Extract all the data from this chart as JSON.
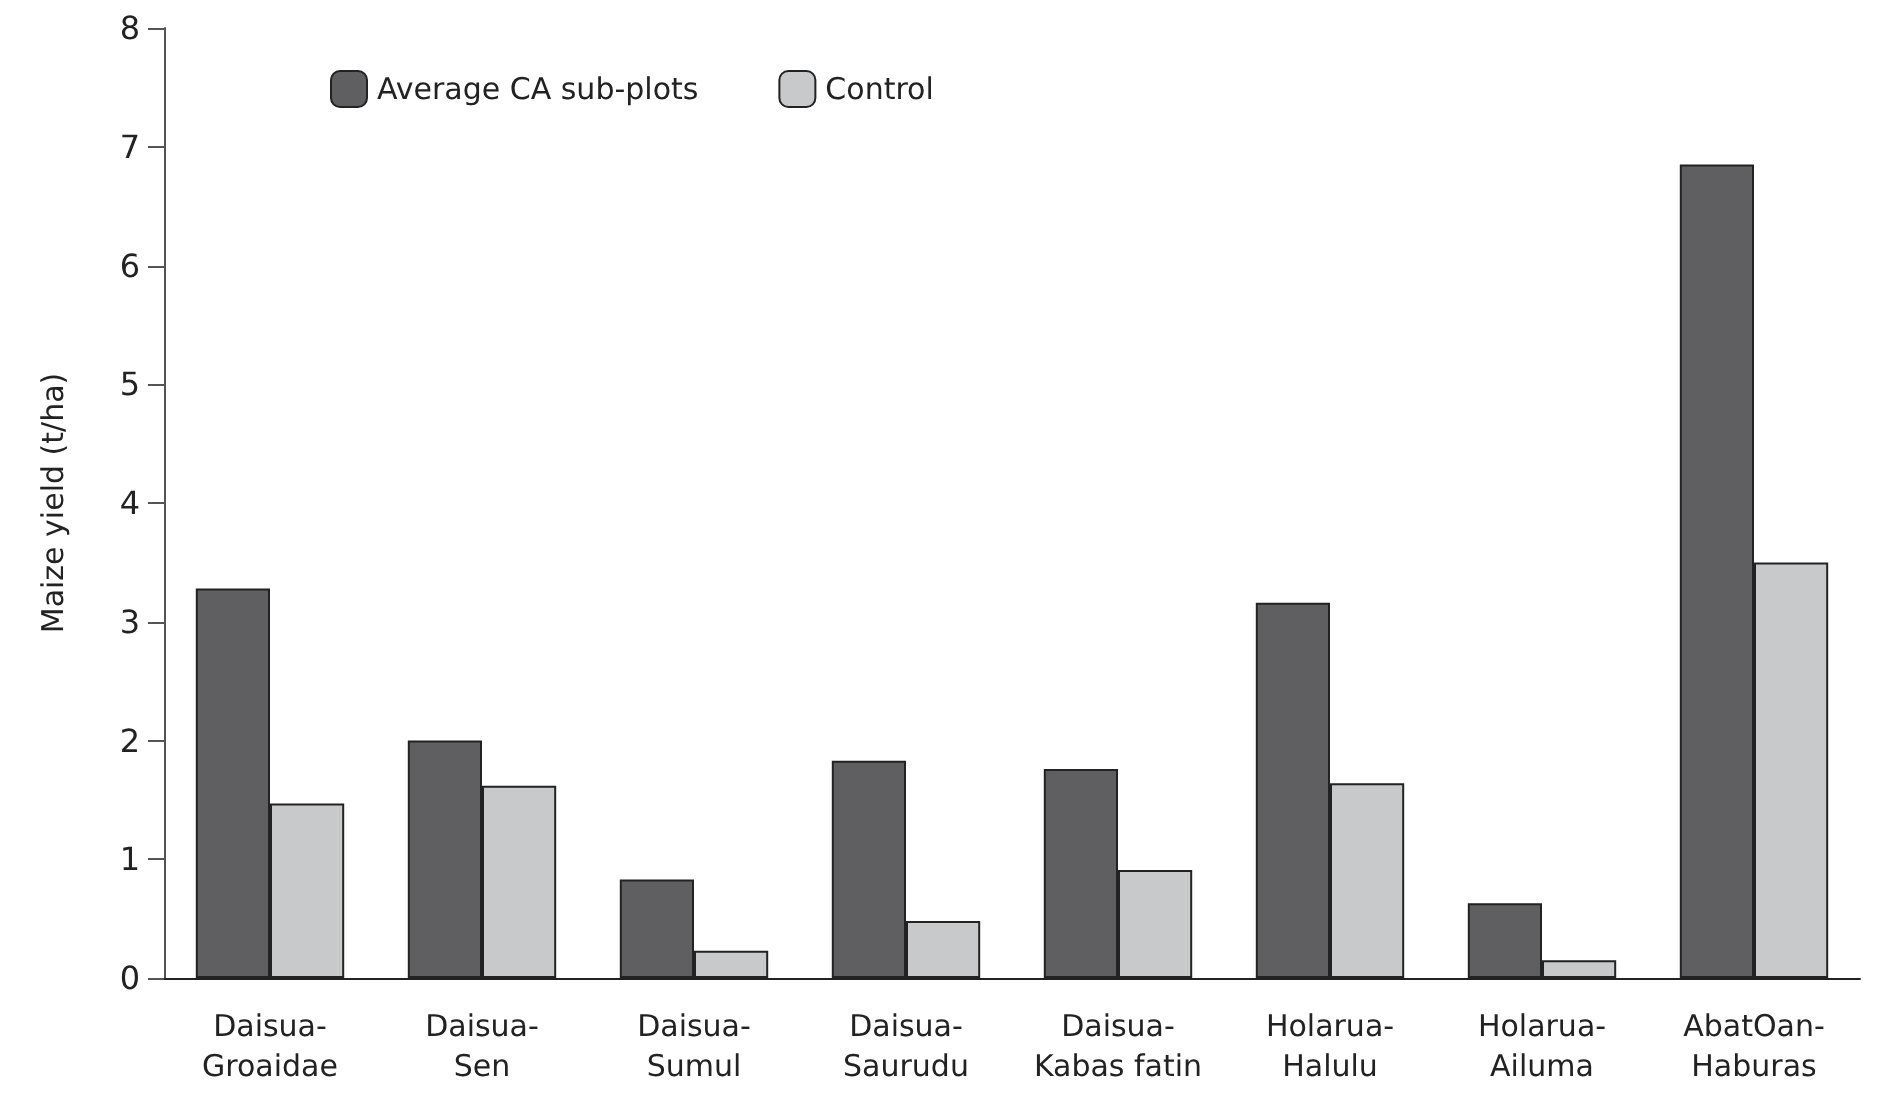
{
  "chart_data": {
    "type": "bar",
    "ylabel": "Maize yield (t/ha)",
    "categories": [
      "Daisua-\nGroaidae",
      "Daisua-\nSen",
      "Daisua-\nSumul",
      "Daisua-\nSaurudu",
      "Daisua-\nKabas fatin",
      "Holarua-\nHalulu",
      "Holarua-\nAiluma",
      "AbatOan-\nHaburas"
    ],
    "series": [
      {
        "name": "Average CA sub-plots",
        "color": "#5f5f61",
        "values": [
          3.28,
          2.0,
          0.83,
          1.83,
          1.76,
          3.16,
          0.63,
          6.85
        ]
      },
      {
        "name": "Control",
        "color": "#c8c9cb",
        "values": [
          1.47,
          1.62,
          0.23,
          0.48,
          0.91,
          1.64,
          0.15,
          3.5
        ]
      }
    ],
    "ylim": [
      0,
      8
    ],
    "yticks": [
      0,
      1,
      2,
      3,
      4,
      5,
      6,
      7,
      8
    ],
    "grid": false,
    "legend": "top left"
  }
}
